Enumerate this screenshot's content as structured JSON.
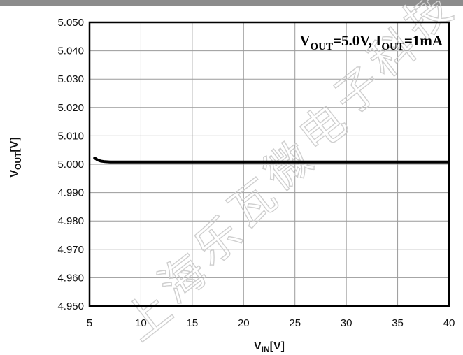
{
  "chart_data": {
    "type": "line",
    "title": "",
    "annotation": {
      "main": "V",
      "sub1": "OUT",
      "mid": "=5.0V, I",
      "sub2": "OUT",
      "end": "=1mA"
    },
    "xlabel": {
      "main": "V",
      "sub": "IN",
      "unit": "[V]"
    },
    "ylabel": {
      "main": "V",
      "sub": "OUT",
      "unit": "[V]"
    },
    "xlim": [
      5,
      40
    ],
    "ylim": [
      4.95,
      5.05
    ],
    "x_ticks": [
      "5",
      "10",
      "15",
      "20",
      "25",
      "30",
      "35",
      "40"
    ],
    "y_ticks": [
      "5.050",
      "5.040",
      "5.030",
      "5.020",
      "5.010",
      "5.000",
      "4.990",
      "4.980",
      "4.970",
      "4.960",
      "4.950"
    ],
    "grid": true,
    "series": [
      {
        "color": "#000000",
        "x": [
          5.5,
          5.8,
          6.1,
          6.5,
          7.0,
          8.0,
          10,
          15,
          20,
          25,
          30,
          35,
          40
        ],
        "y": [
          5.0022,
          5.0015,
          5.0011,
          5.0009,
          5.0008,
          5.0008,
          5.0008,
          5.0008,
          5.0008,
          5.0008,
          5.0008,
          5.0008,
          5.0008
        ]
      }
    ]
  },
  "watermark": "上海乐瓦微电子科技"
}
